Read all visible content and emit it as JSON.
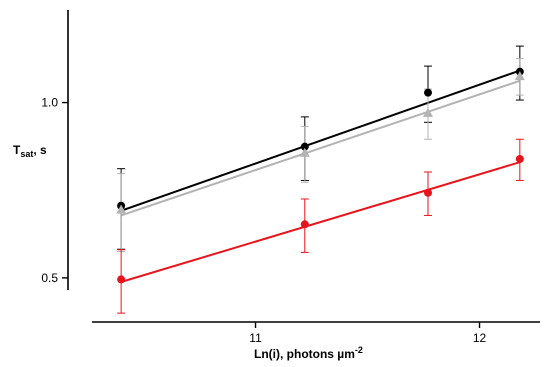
{
  "chart_data": {
    "type": "scatter",
    "xlabel_main": "Ln(i), photons µm",
    "xlabel_exp": "-2",
    "ylabel_main": "T",
    "ylabel_sub": "sat",
    "ylabel_tail": ", s",
    "xlim": [
      10.27,
      12.27
    ],
    "x_ticks": [
      11,
      12
    ],
    "x_tick_labels": [
      "11",
      "12"
    ],
    "y_scale": "log",
    "ylim": [
      0.42,
      1.5
    ],
    "y_ticks": [
      0.5,
      1.0
    ],
    "y_tick_labels": [
      "0.5",
      "1.0"
    ],
    "grid": false,
    "series": [
      {
        "color": "#000000",
        "marker": "circle",
        "points": [
          {
            "x": 10.4,
            "y": 0.665,
            "err": 0.105
          },
          {
            "x": 11.22,
            "y": 0.84,
            "err": 0.105
          },
          {
            "x": 11.77,
            "y": 1.04,
            "err": 0.115
          },
          {
            "x": 12.18,
            "y": 1.13,
            "err": 0.12
          }
        ],
        "fit": {
          "x1": 10.4,
          "y1": 0.652,
          "x2": 12.18,
          "y2": 1.135
        }
      },
      {
        "color": "#b3b3b3",
        "marker": "triangle",
        "points": [
          {
            "x": 10.4,
            "y": 0.655,
            "err": 0.1
          },
          {
            "x": 11.22,
            "y": 0.82,
            "err": 0.09
          },
          {
            "x": 11.77,
            "y": 0.96,
            "err": 0.095
          },
          {
            "x": 12.18,
            "y": 1.11,
            "err": 0.08
          }
        ],
        "fit": {
          "x1": 10.4,
          "y1": 0.64,
          "x2": 12.18,
          "y2": 1.09
        }
      },
      {
        "color": "#e8141b",
        "marker": "circle",
        "points": [
          {
            "x": 10.4,
            "y": 0.497,
            "err": 0.062
          },
          {
            "x": 11.22,
            "y": 0.618,
            "err": 0.065
          },
          {
            "x": 11.77,
            "y": 0.7,
            "err": 0.06
          },
          {
            "x": 12.18,
            "y": 0.8,
            "err": 0.065
          }
        ],
        "fit": {
          "x1": 10.4,
          "y1": 0.492,
          "x2": 12.18,
          "y2": 0.79
        }
      }
    ]
  }
}
